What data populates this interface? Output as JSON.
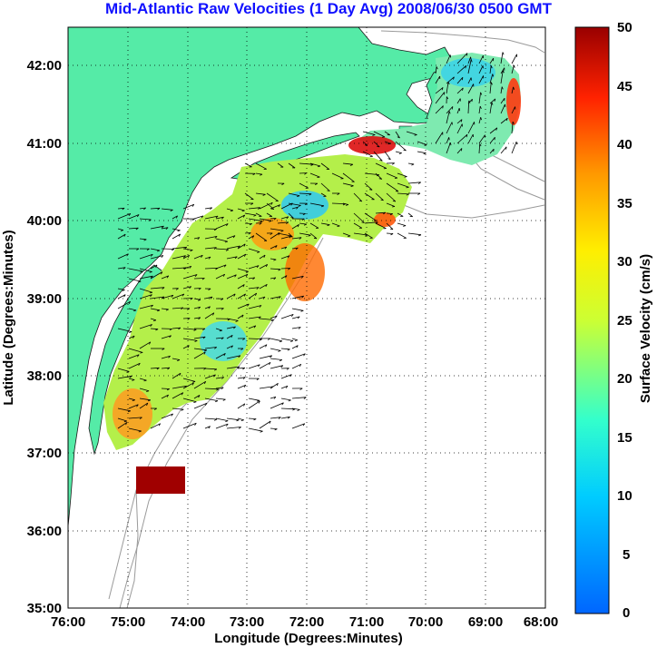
{
  "title": "Mid-Atlantic Raw Velocities (1 Day Avg) 2008/06/30 0500 GMT",
  "map": {
    "xlabel": "Longitude (Degrees:Minutes)",
    "ylabel": "Latitude (Degrees:Minutes)",
    "x_ticks": [
      "76:00",
      "75:00",
      "74:00",
      "73:00",
      "72:00",
      "71:00",
      "70:00",
      "69:00",
      "68:00"
    ],
    "y_ticks": [
      "42:00",
      "41:00",
      "40:00",
      "39:00",
      "38:00",
      "37:00",
      "36:00",
      "35:00"
    ],
    "lon_range": [
      -76,
      -68
    ],
    "lat_range": [
      35,
      42.5
    ],
    "grid": "dotted",
    "land_color": "#55eba7",
    "ocean_color": "#ffffff"
  },
  "colorbar": {
    "label": "Surface Velocity (cm/s)",
    "ticks": [
      "50",
      "45",
      "40",
      "35",
      "30",
      "25",
      "20",
      "15",
      "10",
      "5",
      "0"
    ],
    "min": 0,
    "max": 50,
    "colormap": "jet"
  }
}
